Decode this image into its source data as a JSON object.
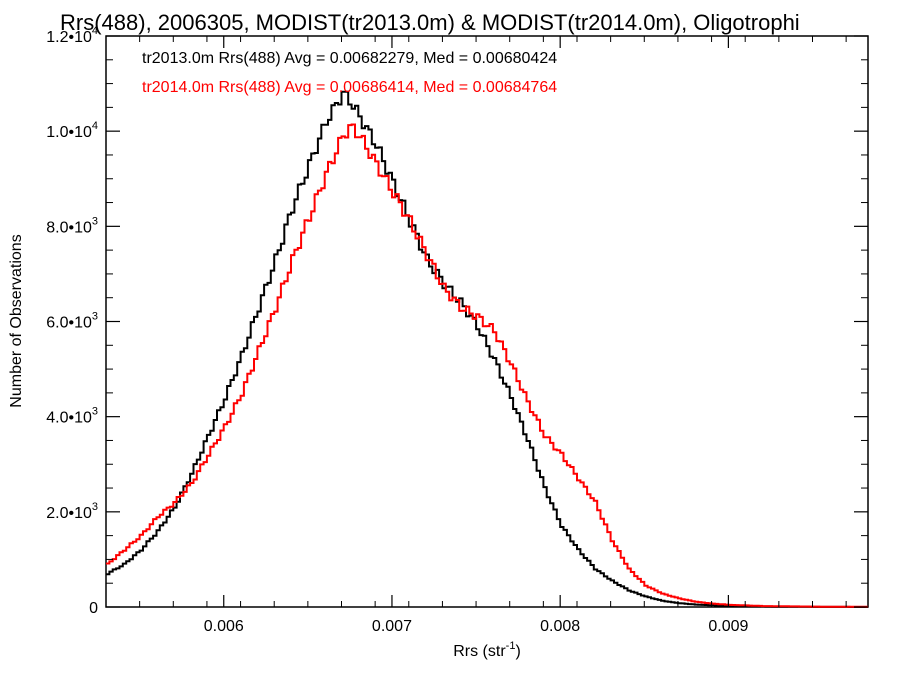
{
  "chart_data": {
    "type": "line",
    "title": "Rrs(488), 2006305, MODIST(tr2013.0m) & MODIST(tr2014.0m), Oligotrophi",
    "xlabel": "Rrs (str",
    "xlabel_exp": "-1",
    "xlabel_end": ")",
    "ylabel": "Number of Observations",
    "xlim": [
      0.0053,
      0.00983
    ],
    "ylim": [
      0,
      12000
    ],
    "xticks": [
      {
        "value": 0.006,
        "label": "0.006"
      },
      {
        "value": 0.007,
        "label": "0.007"
      },
      {
        "value": 0.008,
        "label": "0.008"
      },
      {
        "value": 0.009,
        "label": "0.009"
      }
    ],
    "yticks": [
      {
        "value": 0,
        "mant": "0",
        "exp": ""
      },
      {
        "value": 2000,
        "mant": "2.0•10",
        "exp": "3"
      },
      {
        "value": 4000,
        "mant": "4.0•10",
        "exp": "3"
      },
      {
        "value": 6000,
        "mant": "6.0•10",
        "exp": "3"
      },
      {
        "value": 8000,
        "mant": "8.0•10",
        "exp": "3"
      },
      {
        "value": 10000,
        "mant": "1.0•10",
        "exp": "4"
      },
      {
        "value": 12000,
        "mant": "1.2•10",
        "exp": "4"
      }
    ],
    "annotations": [
      {
        "text": "tr2013.0m Rrs(488) Avg = 0.00682279, Med = 0.00680424",
        "color": "#000000"
      },
      {
        "text": "tr2014.0m Rrs(488) Avg = 0.00686414, Med = 0.00684764",
        "color": "#ff0000"
      }
    ],
    "series": [
      {
        "color": "#000000",
        "points": [
          [
            0.0053,
            700
          ],
          [
            0.0054,
            900
          ],
          [
            0.0055,
            1200
          ],
          [
            0.0056,
            1600
          ],
          [
            0.0057,
            2100
          ],
          [
            0.0058,
            2800
          ],
          [
            0.0059,
            3600
          ],
          [
            0.006,
            4400
          ],
          [
            0.0061,
            5300
          ],
          [
            0.0062,
            6300
          ],
          [
            0.0063,
            7300
          ],
          [
            0.0064,
            8400
          ],
          [
            0.0065,
            9300
          ],
          [
            0.0066,
            10200
          ],
          [
            0.00665,
            10500
          ],
          [
            0.0067,
            10800
          ],
          [
            0.00675,
            10600
          ],
          [
            0.0068,
            10300
          ],
          [
            0.0069,
            9700
          ],
          [
            0.007,
            8900
          ],
          [
            0.0071,
            8100
          ],
          [
            0.0072,
            7300
          ],
          [
            0.0073,
            6800
          ],
          [
            0.0074,
            6400
          ],
          [
            0.0075,
            5900
          ],
          [
            0.0076,
            5200
          ],
          [
            0.0077,
            4400
          ],
          [
            0.0078,
            3500
          ],
          [
            0.0079,
            2500
          ],
          [
            0.008,
            1700
          ],
          [
            0.0081,
            1200
          ],
          [
            0.0082,
            800
          ],
          [
            0.0083,
            550
          ],
          [
            0.0084,
            350
          ],
          [
            0.0085,
            220
          ],
          [
            0.0086,
            130
          ],
          [
            0.0087,
            80
          ],
          [
            0.0088,
            50
          ],
          [
            0.009,
            20
          ],
          [
            0.0093,
            5
          ],
          [
            0.00983,
            0
          ]
        ]
      },
      {
        "color": "#ff0000",
        "points": [
          [
            0.0053,
            900
          ],
          [
            0.0054,
            1200
          ],
          [
            0.0055,
            1500
          ],
          [
            0.0056,
            1900
          ],
          [
            0.0057,
            2200
          ],
          [
            0.0058,
            2600
          ],
          [
            0.0059,
            3200
          ],
          [
            0.006,
            3800
          ],
          [
            0.0061,
            4500
          ],
          [
            0.0062,
            5400
          ],
          [
            0.0063,
            6300
          ],
          [
            0.0064,
            7300
          ],
          [
            0.0065,
            8200
          ],
          [
            0.0066,
            9100
          ],
          [
            0.0067,
            9900
          ],
          [
            0.00675,
            10100
          ],
          [
            0.0068,
            9900
          ],
          [
            0.0069,
            9300
          ],
          [
            0.007,
            8700
          ],
          [
            0.0071,
            8100
          ],
          [
            0.0072,
            7400
          ],
          [
            0.0073,
            6700
          ],
          [
            0.0074,
            6300
          ],
          [
            0.0075,
            6100
          ],
          [
            0.0076,
            5800
          ],
          [
            0.0077,
            5100
          ],
          [
            0.0078,
            4300
          ],
          [
            0.0079,
            3600
          ],
          [
            0.008,
            3200
          ],
          [
            0.0081,
            2700
          ],
          [
            0.0082,
            2200
          ],
          [
            0.0083,
            1400
          ],
          [
            0.0084,
            800
          ],
          [
            0.0085,
            450
          ],
          [
            0.0086,
            280
          ],
          [
            0.0087,
            180
          ],
          [
            0.0088,
            110
          ],
          [
            0.0089,
            70
          ],
          [
            0.009,
            45
          ],
          [
            0.0092,
            20
          ],
          [
            0.0095,
            8
          ],
          [
            0.00983,
            3
          ]
        ]
      }
    ]
  }
}
